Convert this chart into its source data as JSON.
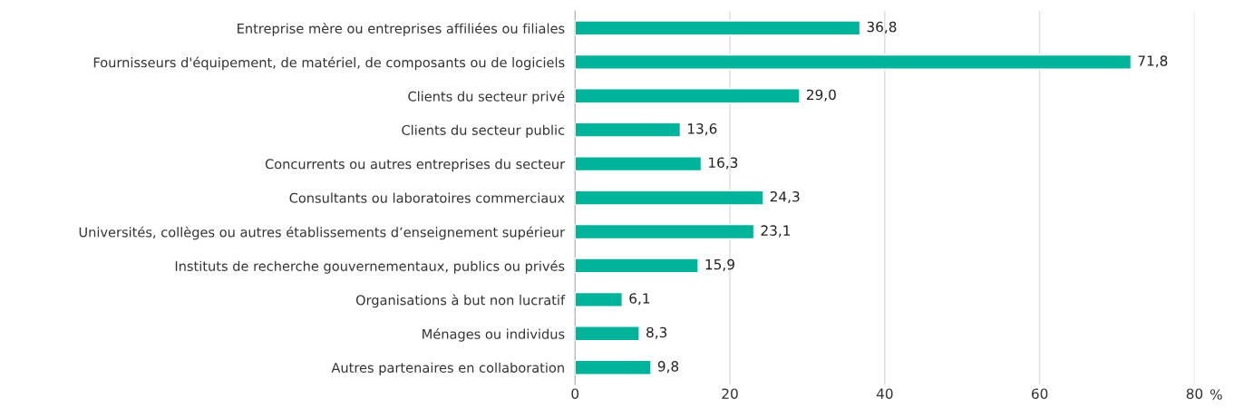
{
  "chart_data": {
    "type": "bar",
    "orientation": "horizontal",
    "categories": [
      "Entreprise mère ou entreprises affiliées ou filiales",
      "Fournisseurs d'équipement, de matériel, de composants ou de logiciels",
      "Clients du secteur privé",
      "Clients du secteur public",
      "Concurrents ou autres entreprises du secteur",
      "Consultants ou laboratoires commerciaux",
      "Universités, collèges ou autres établissements d’enseignement supérieur",
      "Instituts de recherche gouvernementaux, publics ou privés",
      "Organisations à but non lucratif",
      "Ménages ou individus",
      "Autres partenaires en collaboration"
    ],
    "values": [
      36.8,
      71.8,
      29.0,
      13.6,
      16.3,
      24.3,
      23.1,
      15.9,
      6.1,
      8.3,
      9.8
    ],
    "value_labels": [
      "36,8",
      "71,8",
      "29,0",
      "13,6",
      "16,3",
      "24,3",
      "23,1",
      "15,9",
      "6,1",
      "8,3",
      "9,8"
    ],
    "color": "#00b39b",
    "xlabel": "%",
    "xlim": [
      0,
      80
    ],
    "xticks": [
      0,
      20,
      40,
      60,
      80
    ],
    "grid": "x"
  }
}
